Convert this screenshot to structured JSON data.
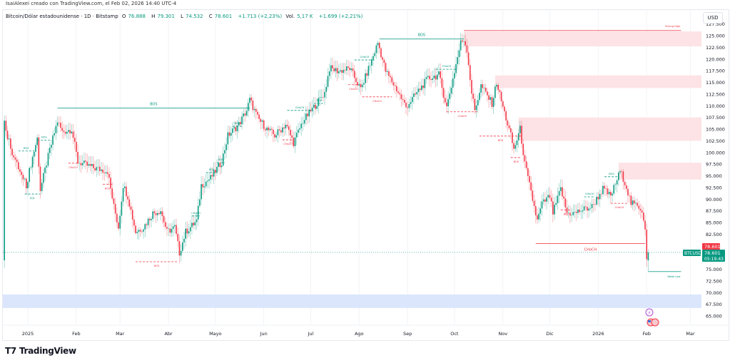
{
  "credit": "IsaiAlexei creado con TradingView.com, el Feb 02, 2026 14:40 UTC-4",
  "legend": {
    "symbol": "Bitcoin/Dólar estadounidense · 1D · Bitstamp",
    "open_label": "O",
    "open": "76.888",
    "high_label": "H",
    "high": "79.301",
    "low_label": "L",
    "low": "74.532",
    "close_label": "C",
    "close": "78.601",
    "change": "+1.713 (+2,23%)",
    "vol_label": "Vol.",
    "vol": "5,17 K",
    "vol_change": "+1.699 (+2,21%)"
  },
  "currency": "USD",
  "brand": "TradingView",
  "colors": {
    "up": "#089981",
    "down": "#f23645",
    "zone_supply": "#fde3e5",
    "zone_demand": "#dbe6fd"
  },
  "chart_data": {
    "type": "candlestick",
    "symbol_tag": "BTCUSD",
    "last_price_label": "78.601",
    "prev_close_label": "78.601",
    "countdown": "05:19:43",
    "y_unit": "thousand USD",
    "ylim": [
      64,
      128
    ],
    "y_ticks": [
      "127.500",
      "125.000",
      "122.500",
      "120.000",
      "117.500",
      "115.000",
      "112.500",
      "110.000",
      "107.500",
      "105.000",
      "102.500",
      "100.000",
      "97.500",
      "95.000",
      "92.500",
      "90.000",
      "87.500",
      "85.000",
      "82.500",
      "75.000",
      "72.500",
      "70.000",
      "67.500",
      "65.000"
    ],
    "x_ticks": [
      {
        "label": "2025",
        "day": 0
      },
      {
        "label": "Feb",
        "day": 31
      },
      {
        "label": "Mar",
        "day": 59
      },
      {
        "label": "Abr",
        "day": 90
      },
      {
        "label": "Mayo",
        "day": 120
      },
      {
        "label": "Jun",
        "day": 151
      },
      {
        "label": "Jul",
        "day": 181
      },
      {
        "label": "Ago",
        "day": 212
      },
      {
        "label": "Sep",
        "day": 243
      },
      {
        "label": "Oct",
        "day": 273
      },
      {
        "label": "Nov",
        "day": 304
      },
      {
        "label": "Dic",
        "day": 334
      },
      {
        "label": "2026",
        "day": 365
      },
      {
        "label": "Feb",
        "day": 396
      },
      {
        "label": "Mar",
        "day": 424
      }
    ],
    "close_anchors_day_price": [
      [
        -15,
        106.7
      ],
      [
        -13,
        103.6
      ],
      [
        -9,
        99
      ],
      [
        -4,
        95
      ],
      [
        -1,
        93
      ],
      [
        3,
        99
      ],
      [
        6,
        103
      ],
      [
        8,
        92
      ],
      [
        14,
        100.5
      ],
      [
        19,
        106.7
      ],
      [
        22,
        104.4
      ],
      [
        28,
        105
      ],
      [
        32,
        98
      ],
      [
        42,
        96.7
      ],
      [
        51,
        96
      ],
      [
        55,
        88.4
      ],
      [
        58,
        84
      ],
      [
        61,
        93
      ],
      [
        64,
        90.6
      ],
      [
        69,
        83
      ],
      [
        74,
        84
      ],
      [
        80,
        87
      ],
      [
        85,
        87.6
      ],
      [
        89,
        83
      ],
      [
        94,
        84
      ],
      [
        97,
        78.5
      ],
      [
        101,
        83
      ],
      [
        108,
        85.3
      ],
      [
        111,
        93
      ],
      [
        117,
        94.5
      ],
      [
        124,
        98
      ],
      [
        128,
        103.6
      ],
      [
        135,
        106
      ],
      [
        140,
        109
      ],
      [
        142,
        111.3
      ],
      [
        147,
        107.4
      ],
      [
        153,
        105
      ],
      [
        158,
        103.6
      ],
      [
        165,
        106
      ],
      [
        170,
        102.1
      ],
      [
        176,
        106.7
      ],
      [
        183,
        109.7
      ],
      [
        190,
        112.8
      ],
      [
        193,
        118
      ],
      [
        199,
        117.4
      ],
      [
        206,
        118
      ],
      [
        213,
        113.5
      ],
      [
        220,
        119.7
      ],
      [
        224,
        123.5
      ],
      [
        229,
        117.4
      ],
      [
        236,
        113.5
      ],
      [
        242,
        109.7
      ],
      [
        249,
        112.8
      ],
      [
        256,
        115.8
      ],
      [
        263,
        116.6
      ],
      [
        268,
        109.7
      ],
      [
        272,
        115.8
      ],
      [
        277,
        123.5
      ],
      [
        279,
        124.2
      ],
      [
        281,
        122
      ],
      [
        284,
        112.8
      ],
      [
        286,
        109
      ],
      [
        290,
        114.3
      ],
      [
        297,
        110.5
      ],
      [
        300,
        115
      ],
      [
        304,
        109.7
      ],
      [
        309,
        103.6
      ],
      [
        311,
        100.6
      ],
      [
        315,
        105
      ],
      [
        318,
        97.5
      ],
      [
        322,
        91.4
      ],
      [
        326,
        85.3
      ],
      [
        329,
        89
      ],
      [
        334,
        90.6
      ],
      [
        336,
        87
      ],
      [
        341,
        92.2
      ],
      [
        345,
        87
      ],
      [
        350,
        87
      ],
      [
        354,
        87.6
      ],
      [
        361,
        88.4
      ],
      [
        368,
        92.2
      ],
      [
        373,
        90.6
      ],
      [
        379,
        96
      ],
      [
        382,
        93.7
      ],
      [
        386,
        89.1
      ],
      [
        391,
        88.4
      ],
      [
        393,
        87.6
      ],
      [
        395,
        84
      ],
      [
        396,
        76.9
      ]
    ],
    "last_candle": {
      "day": 397,
      "open": 76.888,
      "high": 79.301,
      "low": 74.532,
      "close": 78.601
    },
    "zones": [
      {
        "kind": "supply",
        "from_day": 279,
        "top": 125.9,
        "bottom": 122.7
      },
      {
        "kind": "supply",
        "from_day": 299,
        "top": 116.5,
        "bottom": 113.8
      },
      {
        "kind": "supply",
        "from_day": 314,
        "top": 107.5,
        "bottom": 102.5
      },
      {
        "kind": "supply",
        "from_day": 378,
        "top": 97.8,
        "bottom": 94.2
      },
      {
        "kind": "demand",
        "from_day": -16,
        "top": 69.6,
        "bottom": 66.7
      }
    ],
    "major_levels": [
      {
        "label": "BOS",
        "color": "up",
        "from_day": 19,
        "to_day": 142,
        "price": 109.5,
        "size": "large"
      },
      {
        "label": "BOS",
        "color": "up",
        "from_day": 225,
        "to_day": 279,
        "price": 124.3,
        "size": "large"
      },
      {
        "label": "CHoCH",
        "color": "down",
        "from_day": 325,
        "to_day": 395,
        "price": 80.5,
        "size": "large"
      },
      {
        "label": "Strong High",
        "color": "down",
        "from_day": 279,
        "to_day": 418,
        "price": 126.1,
        "size": "tag"
      },
      {
        "label": "Weak Low",
        "color": "up",
        "from_day": 397,
        "to_day": 418,
        "price": 74.5,
        "size": "tag"
      }
    ],
    "structure_labels": [
      {
        "label": "BOS",
        "color": "up",
        "from_day": -6,
        "to_day": 4,
        "price": 100.3
      },
      {
        "label": "BOS",
        "color": "up",
        "from_day": 6,
        "to_day": 15,
        "price": 102.6
      },
      {
        "label": "EQL",
        "color": "up",
        "from_day": -2,
        "to_day": 8,
        "price": 91.1,
        "below": true
      },
      {
        "label": "CHoCH",
        "color": "down",
        "from_day": 26,
        "to_day": 32,
        "price": 97.7,
        "below": true
      },
      {
        "label": "BOS",
        "color": "down",
        "from_day": 48,
        "to_day": 54,
        "price": 93.2,
        "below": true
      },
      {
        "label": "BOS",
        "color": "down",
        "from_day": 69,
        "to_day": 96,
        "price": 76.6,
        "below": true
      },
      {
        "label": "CHoCH",
        "color": "up",
        "from_day": 105,
        "to_day": 110,
        "price": 86.4
      },
      {
        "label": "BOS",
        "color": "up",
        "from_day": 114,
        "to_day": 121,
        "price": 95.7
      },
      {
        "label": "BOS",
        "color": "up",
        "from_day": 121,
        "to_day": 126,
        "price": 97.8
      },
      {
        "label": "BOS",
        "color": "up",
        "from_day": 131,
        "to_day": 137,
        "price": 105.6
      },
      {
        "label": "BOS",
        "color": "up",
        "from_day": 183,
        "to_day": 190,
        "price": 110.5
      },
      {
        "label": "CHoCH",
        "color": "up",
        "from_day": 166,
        "to_day": 182,
        "price": 109
      },
      {
        "label": "CHoCH",
        "color": "down",
        "from_day": 163,
        "to_day": 170,
        "price": 102.7,
        "below": true
      },
      {
        "label": "CHoCH",
        "color": "up",
        "from_day": 209,
        "to_day": 222,
        "price": 119.8
      },
      {
        "label": "CHoCH",
        "color": "down",
        "from_day": 205,
        "to_day": 212,
        "price": 114.5,
        "below": true
      },
      {
        "label": "CHoCH",
        "color": "down",
        "from_day": 214,
        "to_day": 233,
        "price": 111.9,
        "below": true
      },
      {
        "label": "CHoCH",
        "color": "up",
        "from_day": 261,
        "to_day": 275,
        "price": 117.8
      },
      {
        "label": "CHoCH",
        "color": "down",
        "from_day": 268,
        "to_day": 288,
        "price": 108.7,
        "below": true
      },
      {
        "label": "BOS",
        "color": "down",
        "from_day": 289,
        "to_day": 316,
        "price": 103.5,
        "below": true
      },
      {
        "label": "BOS",
        "color": "down",
        "from_day": 309,
        "to_day": 316,
        "price": 98.9,
        "below": true
      },
      {
        "label": "BOS",
        "color": "up",
        "from_day": 369,
        "to_day": 378,
        "price": 94.8
      },
      {
        "label": "CHoCH",
        "color": "up",
        "from_day": 356,
        "to_day": 363,
        "price": 90.5
      },
      {
        "label": "BOS",
        "color": "down",
        "from_day": 341,
        "to_day": 348,
        "price": 87.7,
        "below": true
      },
      {
        "label": "CHoCH",
        "color": "down",
        "from_day": 373,
        "to_day": 384,
        "price": 89.1,
        "below": true
      }
    ]
  }
}
